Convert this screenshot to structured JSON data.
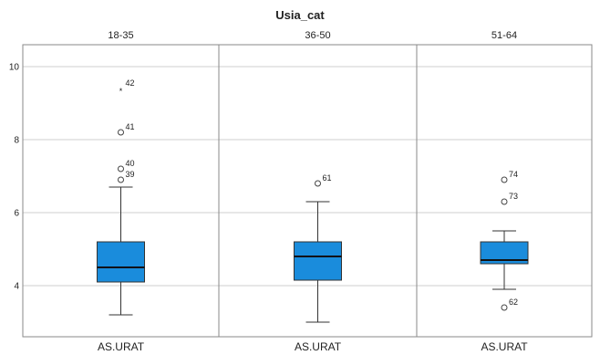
{
  "chart_data": {
    "type": "boxplot",
    "title": "Usia_cat",
    "ylim": [
      2.6,
      10.6
    ],
    "yticks": [
      4,
      6,
      8,
      10
    ],
    "grid": true,
    "colors": {
      "box": "#1a8cdc",
      "grid": "#cfcfcf",
      "border": "#8a8a8a"
    },
    "panels": [
      {
        "facet": "18-35",
        "xlabel": "AS.URAT",
        "whisker_low": 3.2,
        "q1": 4.1,
        "median": 4.5,
        "q3": 5.2,
        "whisker_high": 6.7,
        "outliers": [
          {
            "id": "39",
            "value": 6.9,
            "marker": "circle"
          },
          {
            "id": "40",
            "value": 7.2,
            "marker": "circle"
          },
          {
            "id": "41",
            "value": 8.2,
            "marker": "circle"
          },
          {
            "id": "42",
            "value": 9.4,
            "marker": "star"
          }
        ]
      },
      {
        "facet": "36-50",
        "xlabel": "AS.URAT",
        "whisker_low": 3.0,
        "q1": 4.15,
        "median": 4.8,
        "q3": 5.2,
        "whisker_high": 6.3,
        "outliers": [
          {
            "id": "61",
            "value": 6.8,
            "marker": "circle"
          }
        ]
      },
      {
        "facet": "51-64",
        "xlabel": "AS.URAT",
        "whisker_low": 3.9,
        "q1": 4.6,
        "median": 4.7,
        "q3": 5.2,
        "whisker_high": 5.5,
        "outliers": [
          {
            "id": "62",
            "value": 3.4,
            "marker": "circle"
          },
          {
            "id": "73",
            "value": 6.3,
            "marker": "circle"
          },
          {
            "id": "74",
            "value": 6.9,
            "marker": "circle"
          }
        ]
      }
    ]
  }
}
